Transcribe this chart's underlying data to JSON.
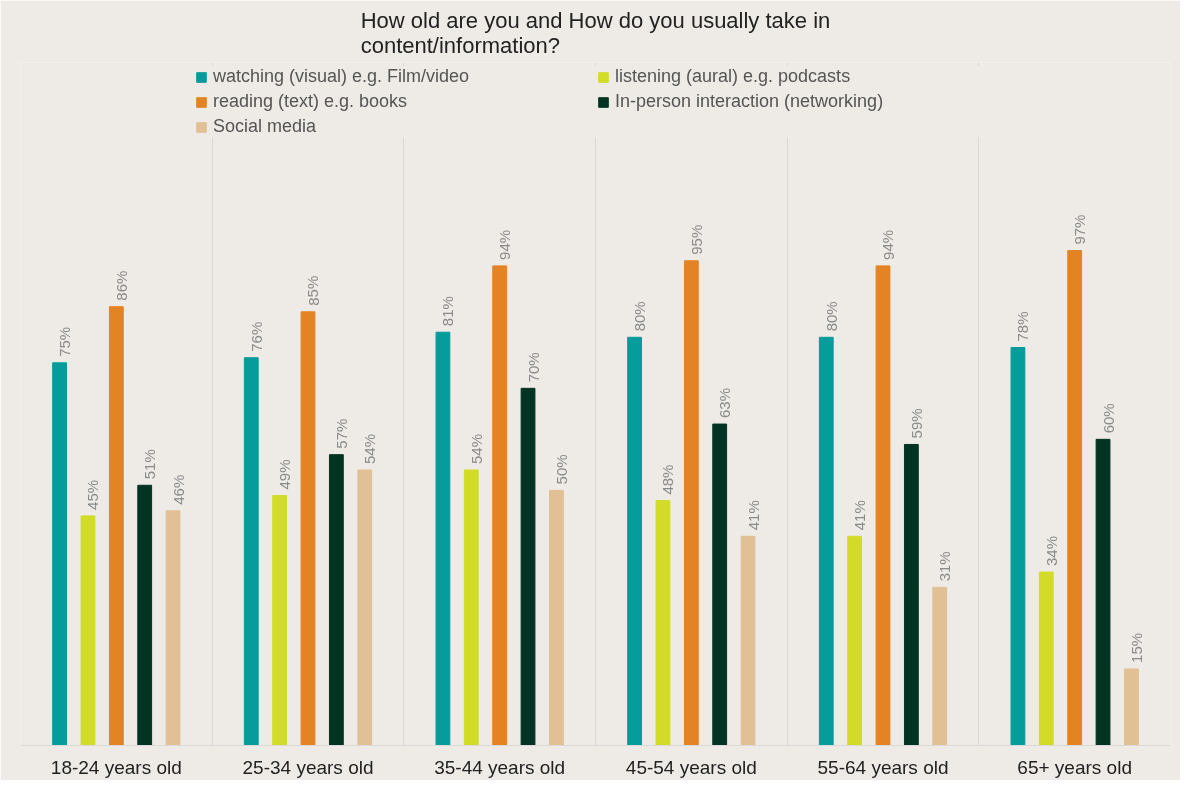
{
  "chart_data": {
    "type": "bar",
    "title": "How old are you and How do you usually take in content/information?",
    "categories": [
      "18-24 years old",
      "25-34 years old",
      "35-44 years old",
      "45-54 years old",
      "55-64 years old",
      "65+ years old"
    ],
    "series": [
      {
        "name": "watching (visual) e.g. Film/video",
        "color": "#069c9c",
        "values": [
          75,
          76,
          81,
          80,
          80,
          78
        ],
        "value_labels": [
          "75%",
          "76%",
          "81%",
          "80%",
          "80%",
          "78%"
        ]
      },
      {
        "name": "listening (aural) e.g. podcasts",
        "color": "#d2dc28",
        "values": [
          45,
          49,
          54,
          48,
          41,
          34
        ],
        "value_labels": [
          "45%",
          "49%",
          "54%",
          "48%",
          "41%",
          "34%"
        ]
      },
      {
        "name": "reading (text) e.g. books",
        "color": "#e38324",
        "values": [
          86,
          85,
          94,
          95,
          94,
          97
        ],
        "value_labels": [
          "86%",
          "85%",
          "94%",
          "95%",
          "94%",
          "97%"
        ]
      },
      {
        "name": "In-person interaction (networking)",
        "color": "#033322",
        "values": [
          51,
          57,
          70,
          63,
          59,
          60
        ],
        "value_labels": [
          "51%",
          "57%",
          "70%",
          "63%",
          "59%",
          "60%"
        ]
      },
      {
        "name": "Social media",
        "color": "#e2c095",
        "values": [
          46,
          54,
          50,
          41,
          31,
          15
        ],
        "value_labels": [
          "46%",
          "54%",
          "50%",
          "41%",
          "31%",
          "15%"
        ]
      }
    ],
    "legend": "top",
    "grid": "x"
  }
}
